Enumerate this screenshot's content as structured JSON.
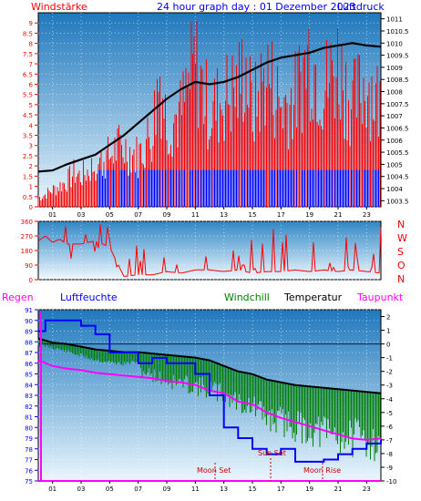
{
  "header": {
    "left_label": "Windstärke",
    "title": "24 hour graph day : 01 Dezember 2023",
    "right_label": "Luftdruck"
  },
  "colors": {
    "wind": "#ff0000",
    "gust": "#0000ff",
    "pressure": "#000000",
    "humidity": "#0000ff",
    "windchill": "#008000",
    "temperature": "#000000",
    "dewpoint": "#ff00ff",
    "rain": "#ff00ff",
    "panel_top": "#2a80c0",
    "panel_bottom": "#e6f3fb"
  },
  "x_ticks": [
    "01",
    "03",
    "05",
    "07",
    "09",
    "11",
    "13",
    "15",
    "17",
    "19",
    "21",
    "23"
  ],
  "direction_labels": [
    "N",
    "W",
    "S",
    "O",
    "N"
  ],
  "bottom_legend": {
    "rain": "Regen",
    "humidity": "Luftfeuchte",
    "windchill": "Windchill",
    "temperature": "Temperatur",
    "dewpoint": "Taupunkt"
  },
  "annotations": {
    "sunset": "Sun Set",
    "moonset": "Moon Set",
    "moonrise": "Moon Rise"
  },
  "chart_data": [
    {
      "type": "line",
      "panel": "wind-pressure",
      "left_axis": {
        "ticks": [
          "0",
          "0.5",
          "1",
          "1.5",
          "2",
          "2.5",
          "3",
          "3.5",
          "4",
          "4.5",
          "5",
          "5.5",
          "6",
          "6.5",
          "7",
          "7.5",
          "8",
          "8.5",
          "9"
        ],
        "ylim": [
          0,
          9.5
        ]
      },
      "right_axis": {
        "ticks": [
          "1003.5",
          "1004",
          "1004.5",
          "1005",
          "1005.5",
          "1006",
          "1006.5",
          "1007",
          "1007.5",
          "1008",
          "1008.5",
          "1009",
          "1009.5",
          "1010",
          "1010.5",
          "1011"
        ],
        "ylim": [
          1003.25,
          1011.25
        ]
      },
      "xlim": [
        0,
        24
      ],
      "series": [
        {
          "name": "Windstärke",
          "x": [
            0,
            1,
            2,
            2.5,
            3,
            4,
            5,
            5.5,
            6,
            7,
            7.5,
            8,
            8.5,
            9,
            10,
            11,
            12,
            12.5,
            13,
            14,
            14.5,
            15,
            16,
            17,
            18,
            19,
            20,
            21,
            22,
            23,
            24
          ],
          "values": [
            0.5,
            1,
            1.5,
            2,
            1.8,
            2.5,
            3,
            3.5,
            3.5,
            3,
            3.8,
            4.5,
            8,
            5,
            5.5,
            8.5,
            5.5,
            6,
            6.5,
            7,
            8.5,
            5.5,
            8,
            6,
            6.5,
            9.2,
            7,
            8.5,
            6,
            7.5,
            6
          ]
        },
        {
          "name": "Luftdruck",
          "x": [
            0,
            1,
            2,
            3,
            4,
            5,
            6,
            7,
            8,
            9,
            10,
            11,
            12,
            13,
            14,
            15,
            16,
            17,
            18,
            19,
            20,
            21,
            22,
            23,
            24
          ],
          "values": [
            1004.7,
            1004.75,
            1005.0,
            1005.2,
            1005.4,
            1005.8,
            1006.2,
            1006.7,
            1007.2,
            1007.7,
            1008.1,
            1008.4,
            1008.3,
            1008.4,
            1008.6,
            1008.9,
            1009.2,
            1009.4,
            1009.5,
            1009.6,
            1009.8,
            1009.9,
            1010.0,
            1009.9,
            1009.85
          ]
        }
      ]
    },
    {
      "type": "line",
      "panel": "wind-direction",
      "left_axis": {
        "ticks": [
          "0",
          "90",
          "180",
          "270",
          "360"
        ],
        "ylim": [
          0,
          360
        ]
      },
      "xlim": [
        0,
        24
      ],
      "series": [
        {
          "name": "Windrichtung",
          "x": [
            0,
            0.5,
            1,
            1.5,
            2,
            3,
            4,
            5,
            6,
            7,
            8,
            9,
            10,
            11,
            12,
            13,
            14,
            15,
            16,
            17,
            18,
            19,
            20,
            21,
            22,
            23,
            24
          ],
          "values": [
            240,
            270,
            230,
            250,
            220,
            220,
            240,
            200,
            20,
            30,
            30,
            50,
            40,
            60,
            60,
            50,
            60,
            40,
            50,
            50,
            60,
            50,
            60,
            50,
            60,
            50,
            40
          ]
        }
      ]
    },
    {
      "type": "line",
      "panel": "temperature-humidity",
      "left_axis": {
        "ticks": [
          "75",
          "76",
          "77",
          "78",
          "79",
          "80",
          "81",
          "82",
          "83",
          "84",
          "85",
          "86",
          "87",
          "88",
          "89",
          "90",
          "91"
        ],
        "ylim": [
          75,
          91
        ]
      },
      "right_axis": {
        "ticks": [
          "-10",
          "-9",
          "-8",
          "-7",
          "-6",
          "-5",
          "-4",
          "-3",
          "-2",
          "-1",
          "0",
          "1",
          "2"
        ],
        "ylim": [
          -10,
          2.5
        ]
      },
      "xlim": [
        0,
        24
      ],
      "series": [
        {
          "name": "Luftfeuchte",
          "x": [
            0,
            0.5,
            1,
            2,
            3,
            4,
            5,
            6,
            7,
            8,
            9,
            10,
            11,
            12,
            13,
            14,
            15,
            16,
            17,
            18,
            19,
            20,
            21,
            22,
            23,
            24
          ],
          "values": [
            89,
            90,
            90,
            90,
            89.5,
            88.7,
            87,
            87,
            86,
            86.5,
            86,
            86,
            85,
            83,
            80,
            79,
            78,
            77.5,
            78,
            76.8,
            76.8,
            77,
            77.5,
            78,
            78.5,
            78.8
          ]
        },
        {
          "name": "Windchill",
          "x": [
            0,
            1,
            2,
            3,
            4,
            5,
            6,
            7,
            8,
            9,
            10,
            11,
            12,
            13,
            14,
            15,
            16,
            17,
            18,
            19,
            20,
            21,
            22,
            23,
            24
          ],
          "values": [
            0.3,
            0.1,
            -0.2,
            -0.5,
            -0.8,
            -1.0,
            -1.1,
            -0.9,
            -1.2,
            -1.6,
            -1.7,
            -1.8,
            -2.0,
            -2.3,
            -2.8,
            -3.1,
            -3.8,
            -4.0,
            -4.3,
            -4.5,
            -4.6,
            -4.8,
            -4.9,
            -5.0,
            -5.1
          ]
        },
        {
          "name": "Temperatur",
          "x": [
            0,
            1,
            2,
            3,
            4,
            5,
            6,
            7,
            8,
            9,
            10,
            11,
            12,
            13,
            14,
            15,
            16,
            17,
            18,
            19,
            20,
            21,
            22,
            23,
            24
          ],
          "values": [
            0.4,
            0.1,
            0.0,
            -0.2,
            -0.4,
            -0.5,
            -0.6,
            -0.6,
            -0.7,
            -0.8,
            -0.9,
            -1.0,
            -1.2,
            -1.6,
            -2.0,
            -2.2,
            -2.6,
            -2.8,
            -3.0,
            -3.1,
            -3.2,
            -3.3,
            -3.4,
            -3.5,
            -3.6
          ]
        },
        {
          "name": "Taupunkt",
          "x": [
            0,
            1,
            2,
            3,
            4,
            5,
            6,
            7,
            8,
            9,
            10,
            11,
            12,
            13,
            14,
            15,
            16,
            17,
            18,
            19,
            20,
            21,
            22,
            23,
            24
          ],
          "values": [
            -1.2,
            -1.6,
            -1.8,
            -1.9,
            -2.1,
            -2.2,
            -2.3,
            -2.4,
            -2.5,
            -2.7,
            -2.8,
            -3.0,
            -3.4,
            -3.6,
            -4.2,
            -4.4,
            -5.0,
            -5.4,
            -5.7,
            -6.0,
            -6.3,
            -6.6,
            -6.9,
            -7.0,
            -6.9
          ]
        },
        {
          "name": "Regen",
          "x": [
            0,
            24
          ],
          "values": [
            75,
            75
          ]
        }
      ]
    }
  ]
}
